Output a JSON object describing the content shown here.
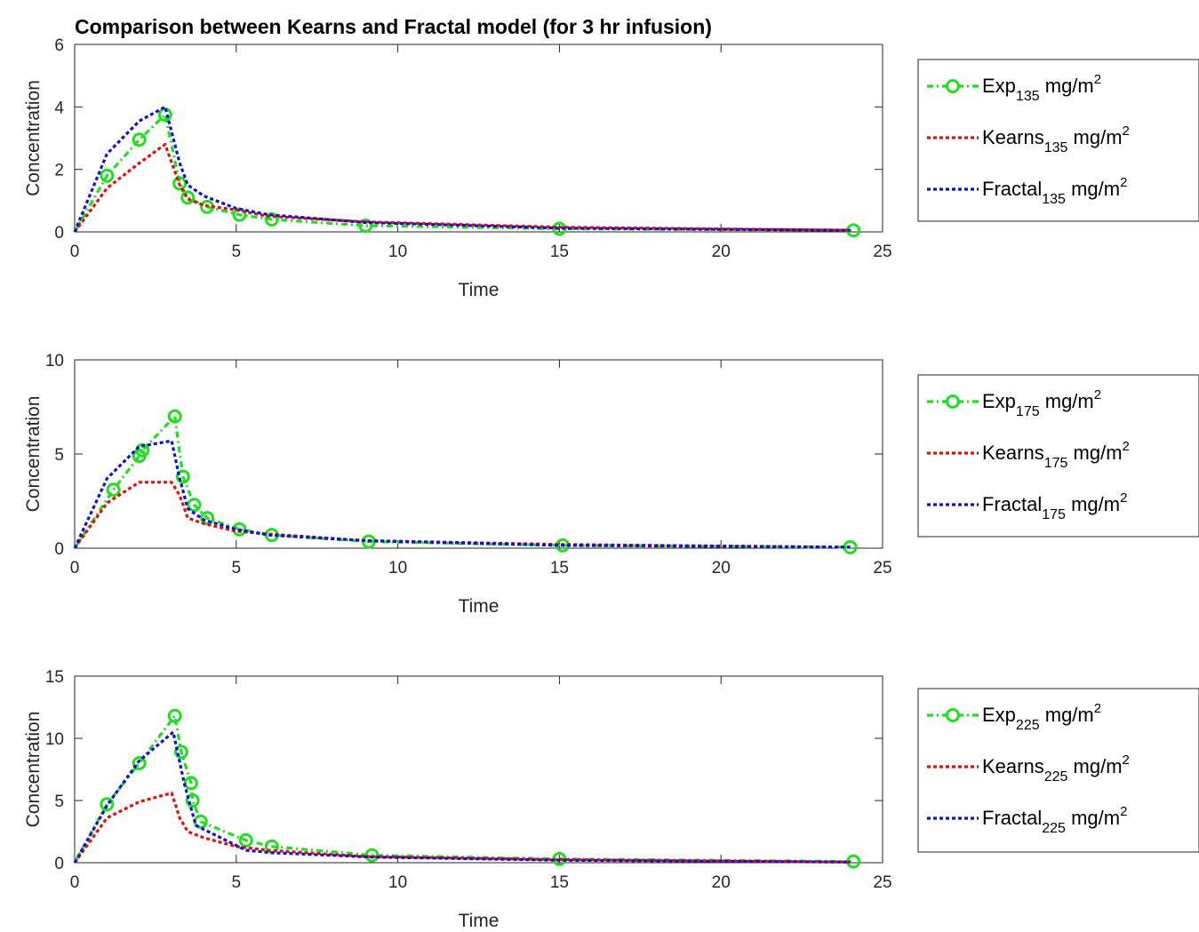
{
  "figure_title": "Comparison between Kearns and Fractal model  (for 3 hr infusion)",
  "colors": {
    "exp": "#22dd22",
    "kearns": "#dd1111",
    "fractal": "#1111cc",
    "axis": "#262626"
  },
  "chart_data": [
    {
      "type": "line",
      "xlabel": "Time",
      "ylabel": "Concentration",
      "xlim": [
        0,
        25
      ],
      "ylim": [
        0,
        6
      ],
      "xticks": [
        0,
        5,
        10,
        15,
        20,
        25
      ],
      "yticks": [
        0,
        2,
        4,
        6
      ],
      "grid": false,
      "legend_position": "outside-right",
      "series": [
        {
          "key": "exp",
          "legend": {
            "name": "Exp",
            "sub": "135",
            "unit": "mg/m",
            "sup": "2"
          },
          "style": "dash-dot",
          "marker": "circle",
          "x": [
            0,
            1,
            2,
            2.8,
            3.25,
            3.5,
            4.1,
            5.1,
            6.1,
            9,
            15,
            24.1
          ],
          "y": [
            0,
            1.8,
            2.95,
            3.75,
            1.55,
            1.1,
            0.8,
            0.55,
            0.4,
            0.2,
            0.1,
            0.05
          ]
        },
        {
          "key": "kearns",
          "legend": {
            "name": "Kearns",
            "sub": "135",
            "unit": "mg/m",
            "sup": "2"
          },
          "style": "dotted",
          "x": [
            0,
            1,
            2,
            2.8,
            3.25,
            3.5,
            4,
            5,
            6,
            9,
            15,
            24
          ],
          "y": [
            0,
            1.4,
            2.2,
            2.8,
            1.5,
            1.05,
            0.85,
            0.7,
            0.5,
            0.32,
            0.15,
            0.05
          ]
        },
        {
          "key": "fractal",
          "legend": {
            "name": "Fractal",
            "sub": "135",
            "unit": "mg/m",
            "sup": "2"
          },
          "style": "dotted",
          "x": [
            0,
            1,
            2,
            2.8,
            3.25,
            3.5,
            4,
            5,
            6,
            9,
            15,
            24
          ],
          "y": [
            0,
            2.5,
            3.55,
            4.0,
            2.2,
            1.5,
            1.15,
            0.75,
            0.55,
            0.3,
            0.12,
            0.05
          ]
        }
      ]
    },
    {
      "type": "line",
      "xlabel": "Time",
      "ylabel": "Concentration",
      "xlim": [
        0,
        25
      ],
      "ylim": [
        0,
        10
      ],
      "xticks": [
        0,
        5,
        10,
        15,
        20,
        25
      ],
      "yticks": [
        0,
        5,
        10
      ],
      "grid": false,
      "legend_position": "outside-right",
      "series": [
        {
          "key": "exp",
          "legend": {
            "name": "Exp",
            "sub": "175",
            "unit": "mg/m",
            "sup": "2"
          },
          "style": "dash-dot",
          "marker": "circle",
          "x": [
            0,
            1.2,
            2,
            2.1,
            3.1,
            3.35,
            3.7,
            4.1,
            5.1,
            6.1,
            9.1,
            15.1,
            24
          ],
          "y": [
            0,
            3.1,
            4.9,
            5.2,
            7.0,
            3.8,
            2.3,
            1.6,
            1.0,
            0.7,
            0.35,
            0.15,
            0.05
          ]
        },
        {
          "key": "kearns",
          "legend": {
            "name": "Kearns",
            "sub": "175",
            "unit": "mg/m",
            "sup": "2"
          },
          "style": "dotted",
          "x": [
            0,
            1,
            2,
            3,
            3.25,
            3.5,
            4,
            5,
            6,
            9,
            15,
            24
          ],
          "y": [
            0,
            2.4,
            3.5,
            3.5,
            2.8,
            1.6,
            1.3,
            0.9,
            0.75,
            0.4,
            0.2,
            0.05
          ]
        },
        {
          "key": "fractal",
          "legend": {
            "name": "Fractal",
            "sub": "175",
            "unit": "mg/m",
            "sup": "2"
          },
          "style": "dotted",
          "x": [
            0,
            1,
            2,
            3,
            3.25,
            3.5,
            4,
            5,
            6,
            9,
            15,
            24
          ],
          "y": [
            0,
            3.7,
            5.4,
            5.7,
            3.7,
            2.1,
            1.5,
            1.0,
            0.7,
            0.4,
            0.15,
            0.05
          ]
        }
      ]
    },
    {
      "type": "line",
      "xlabel": "Time",
      "ylabel": "Concentration",
      "xlim": [
        0,
        25
      ],
      "ylim": [
        0,
        15
      ],
      "xticks": [
        0,
        5,
        10,
        15,
        20,
        25
      ],
      "yticks": [
        0,
        5,
        10,
        15
      ],
      "grid": false,
      "legend_position": "outside-right",
      "series": [
        {
          "key": "exp",
          "legend": {
            "name": "Exp",
            "sub": "225",
            "unit": "mg/m",
            "sup": "2"
          },
          "style": "dash-dot",
          "marker": "circle",
          "x": [
            0,
            1,
            2,
            3.1,
            3.3,
            3.6,
            3.65,
            3.9,
            5.3,
            6.1,
            9.2,
            15,
            24.1
          ],
          "y": [
            0,
            4.7,
            8.0,
            11.8,
            8.9,
            6.4,
            5.0,
            3.3,
            1.8,
            1.3,
            0.6,
            0.3,
            0.1
          ]
        },
        {
          "key": "kearns",
          "legend": {
            "name": "Kearns",
            "sub": "225",
            "unit": "mg/m",
            "sup": "2"
          },
          "style": "dotted",
          "x": [
            0,
            1,
            2,
            3,
            3.25,
            3.5,
            4,
            5,
            6,
            9,
            15,
            24
          ],
          "y": [
            0,
            3.6,
            4.9,
            5.6,
            3.6,
            2.5,
            2.0,
            1.3,
            1.0,
            0.5,
            0.25,
            0.05
          ]
        },
        {
          "key": "fractal",
          "legend": {
            "name": "Fractal",
            "sub": "225",
            "unit": "mg/m",
            "sup": "2"
          },
          "style": "dotted",
          "x": [
            0,
            1,
            2,
            3.05,
            3.4,
            3.75,
            5.3,
            6.1,
            9.2,
            15,
            24
          ],
          "y": [
            0,
            4.6,
            8.2,
            10.5,
            6.3,
            3.0,
            1.0,
            0.8,
            0.45,
            0.2,
            0.05
          ]
        }
      ]
    }
  ]
}
